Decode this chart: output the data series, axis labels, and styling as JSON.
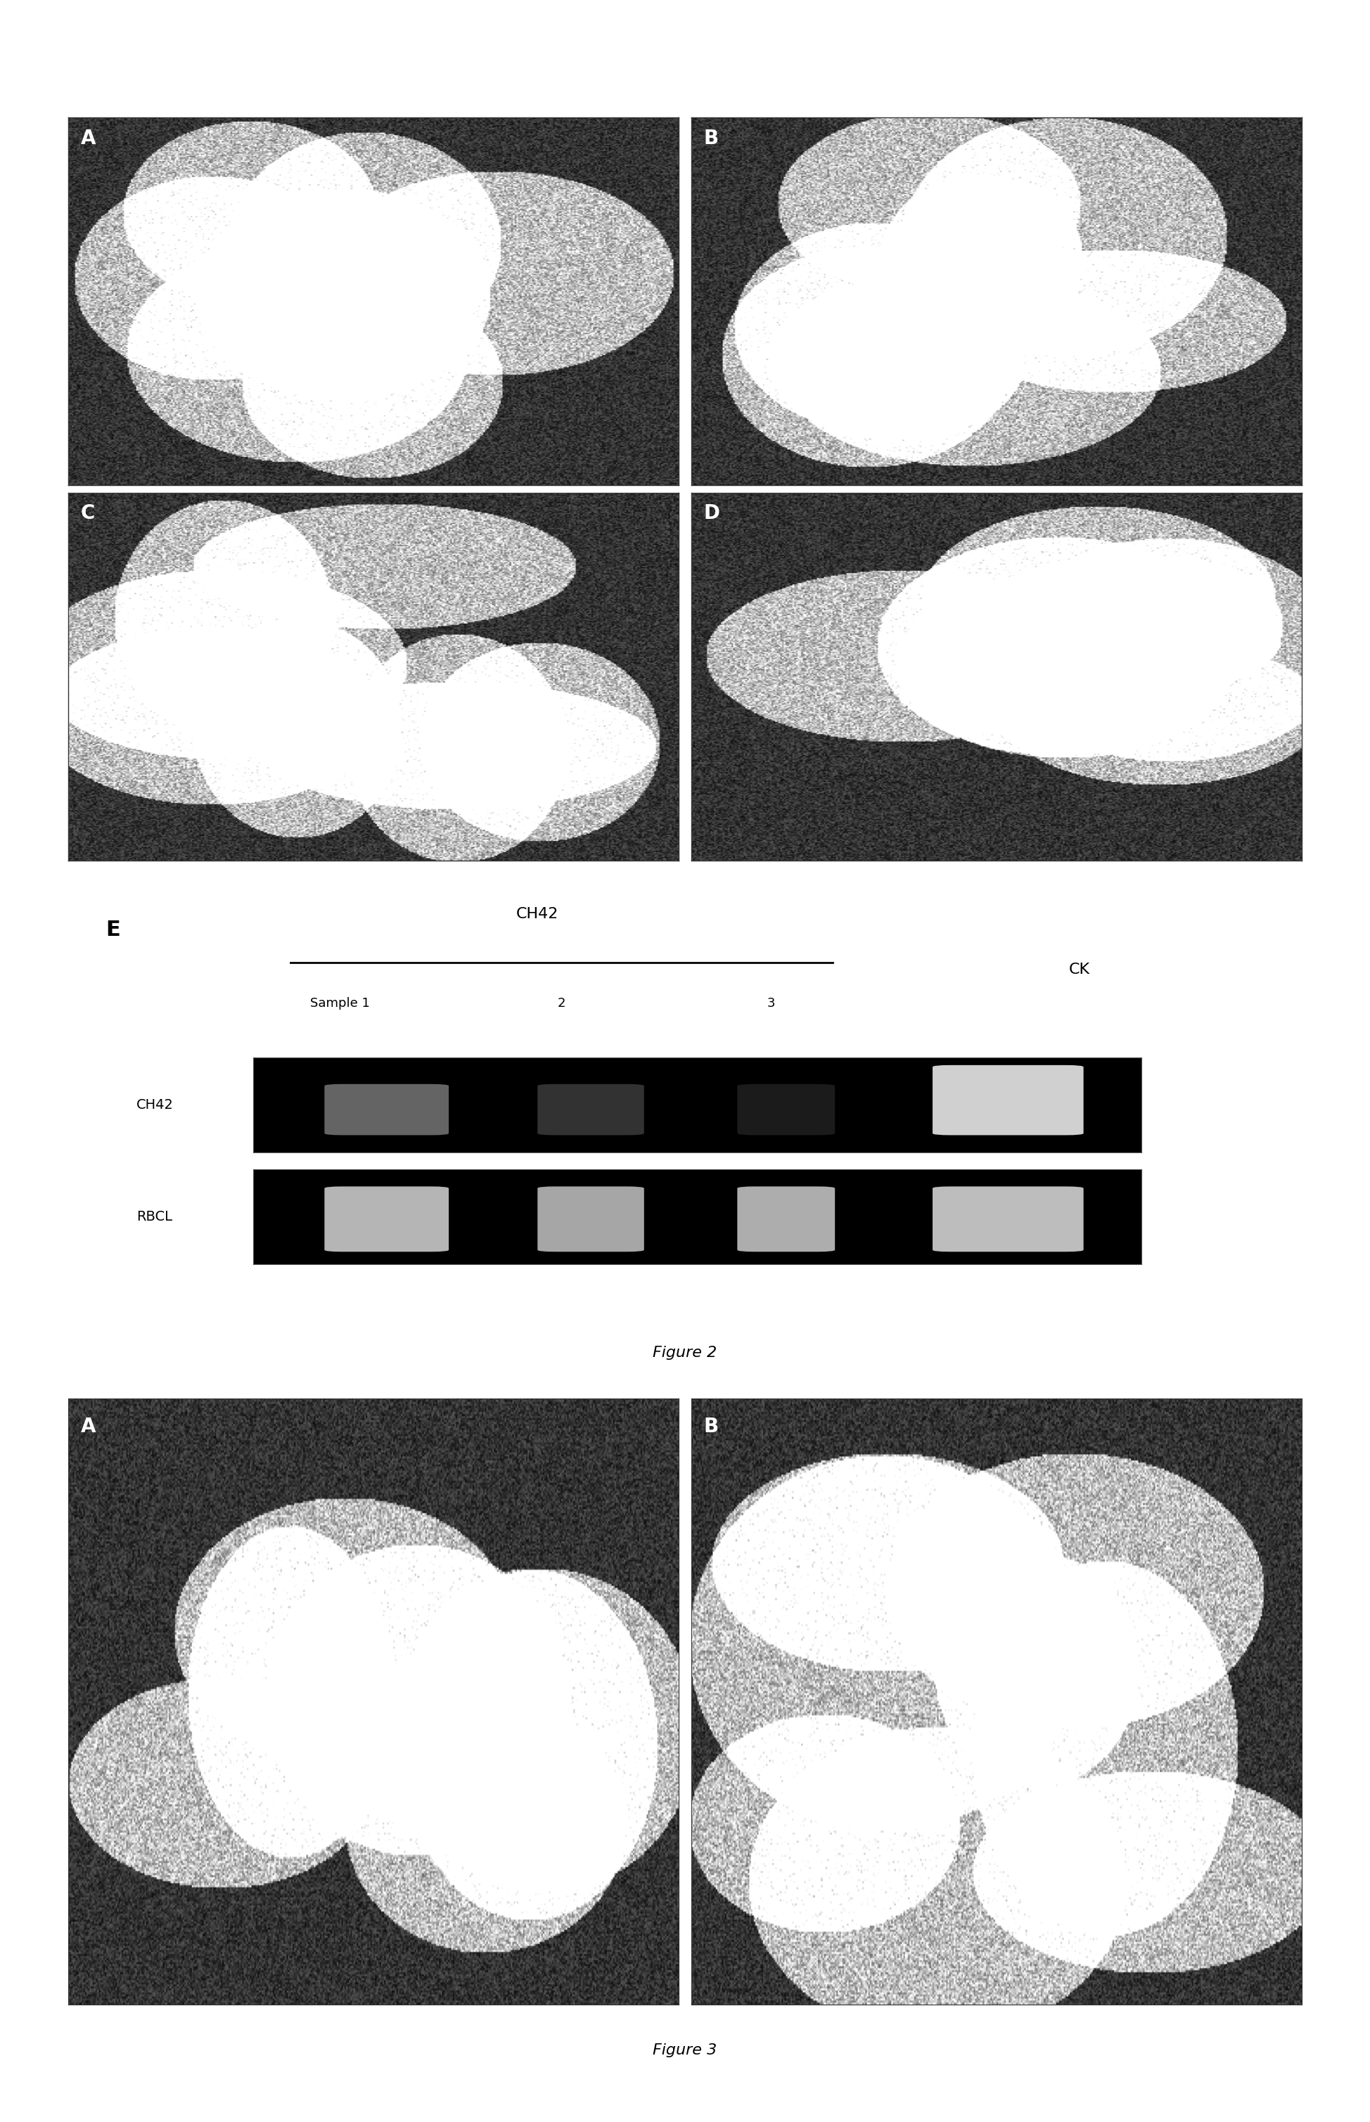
{
  "fig_width": 19.48,
  "fig_height": 30.18,
  "background_color": "#ffffff",
  "panel_labels_ABCD": [
    "A",
    "B",
    "C",
    "D"
  ],
  "panel_label_E": "E",
  "ch42_label": "CH42",
  "ck_label": "CK",
  "sample_label": "Sample 1",
  "sample_numbers": [
    "2",
    "3"
  ],
  "gel_row1_label": "CH42",
  "gel_row2_label": "RBCL",
  "figure2_caption": "Figure 2",
  "figure3_caption": "Figure 3",
  "panel_labels_fig3": [
    "A",
    "B"
  ],
  "gel_bg_color": "#000000",
  "gel_band_color_bright": "#e0e0e0",
  "gel_band_color_dim": "#888888",
  "gel_band_color_faint": "#555555",
  "gel_border_color": "#000000",
  "text_color": "#000000",
  "label_fontsize": 18,
  "caption_fontsize": 16,
  "panel_label_fontsize": 20,
  "gel_label_fontsize": 16
}
